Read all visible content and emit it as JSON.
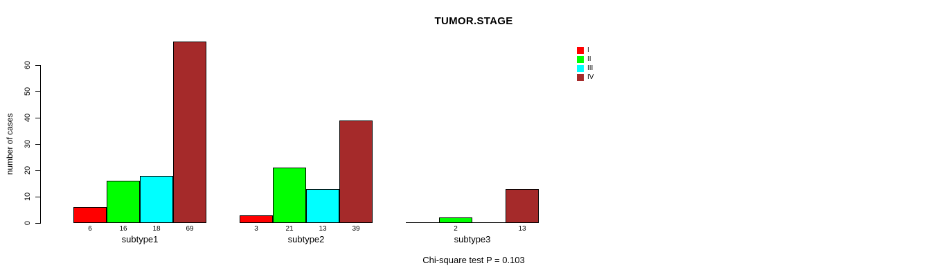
{
  "chart_data": {
    "type": "bar",
    "title": "TUMOR.STAGE",
    "ylabel": "number of cases",
    "xlabel": "",
    "categories": [
      "subtype1",
      "subtype2",
      "subtype3"
    ],
    "series": [
      {
        "name": "I",
        "color": "#FF0000",
        "values": [
          6,
          3,
          0
        ]
      },
      {
        "name": "II",
        "color": "#00FF00",
        "values": [
          16,
          21,
          2
        ]
      },
      {
        "name": "III",
        "color": "#00FFFF",
        "values": [
          18,
          13,
          0
        ]
      },
      {
        "name": "IV",
        "color": "#A52A2A",
        "values": [
          69,
          39,
          13
        ]
      }
    ],
    "bar_value_labels_note": "each bar's count printed under it; zero counts show no label",
    "ylim": [
      0,
      69
    ],
    "yticks": [
      0,
      10,
      20,
      30,
      40,
      50,
      60
    ],
    "grid": false,
    "legend": {
      "position": "top-right outside plot",
      "entries": [
        "I",
        "II",
        "III",
        "IV"
      ]
    },
    "footnote": "Chi-square test P = 0.103"
  }
}
